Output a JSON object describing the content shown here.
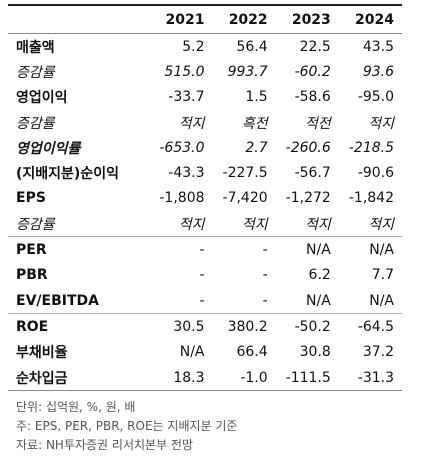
{
  "table": {
    "header": [
      "",
      "2021",
      "2022",
      "2023",
      "2024"
    ],
    "rows": [
      [
        "매출액",
        "5.2",
        "56.4",
        "22.5",
        "43.5"
      ],
      [
        "증감률",
        "515.0",
        "993.7",
        "-60.2",
        "93.6"
      ],
      [
        "영업이익",
        "-33.7",
        "1.5",
        "-58.6",
        "-95.0"
      ],
      [
        "증감률",
        "적지",
        "흑전",
        "적전",
        "적지"
      ],
      [
        "영업이익률",
        "-653.0",
        "2.7",
        "-260.6",
        "-218.5"
      ],
      [
        "(지배지분)순이익",
        "-43.3",
        "-227.5",
        "-56.7",
        "-90.6"
      ],
      [
        "EPS",
        "-1,808",
        "-7,420",
        "-1,272",
        "-1,842"
      ],
      [
        "증감률",
        "적지",
        "적지",
        "적지",
        "적지"
      ],
      [
        "PER",
        "-",
        "-",
        "N/A",
        "N/A"
      ],
      [
        "PBR",
        "-",
        "-",
        "6.2",
        "7.7"
      ],
      [
        "EV/EBITDA",
        "-",
        "-",
        "N/A",
        "N/A"
      ],
      [
        "ROE",
        "30.5",
        "380.2",
        "-50.2",
        "-64.5"
      ],
      [
        "부채비율",
        "N/A",
        "66.4",
        "30.8",
        "37.2"
      ],
      [
        "순차입금",
        "18.3",
        "-1.0",
        "-111.5",
        "-31.3"
      ]
    ]
  },
  "notes": [
    "단위: 십억원, %, 원, 배",
    "주: EPS, PER, PBR, ROE는 지배지분 기준",
    "자료: NH투자증권 리서치본부 전망"
  ]
}
